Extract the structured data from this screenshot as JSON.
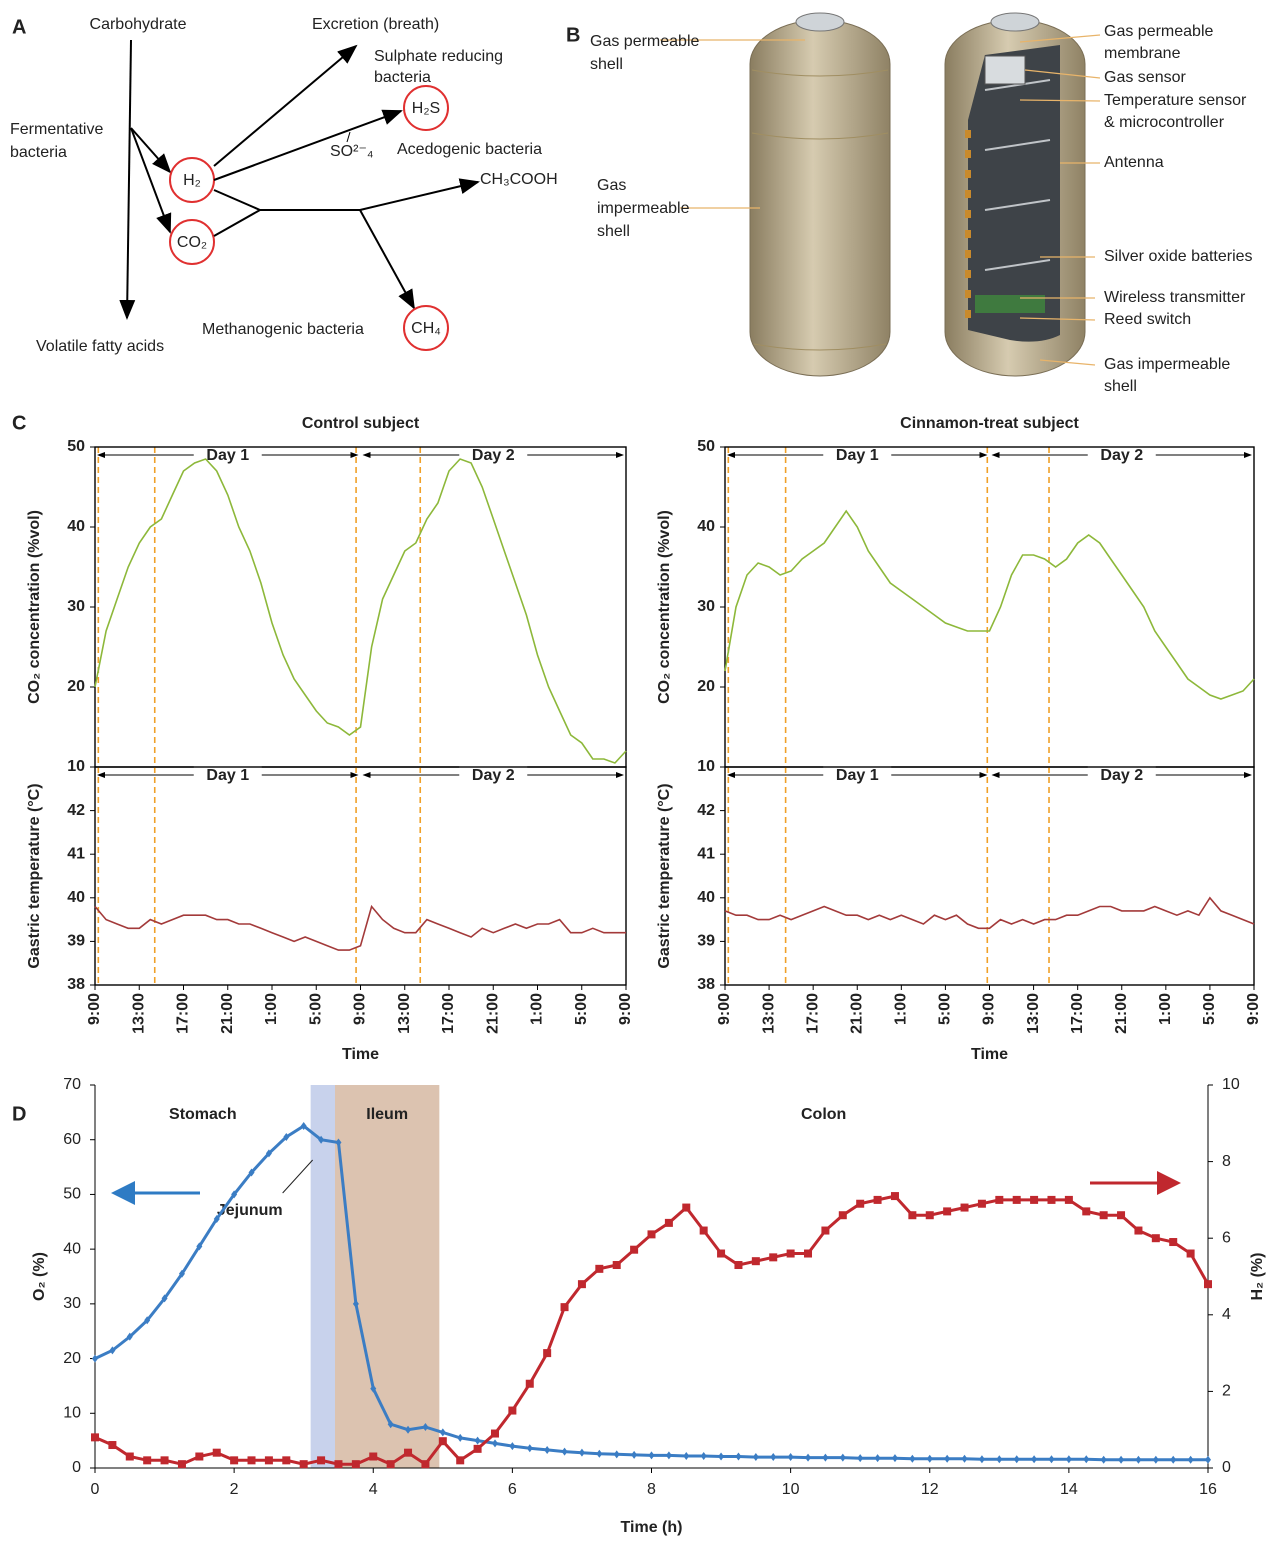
{
  "diagram": {
    "label": "A",
    "carbohydrate": "Carbohydrate",
    "excretion": "Excretion (breath)",
    "sulphate": {
      "lines": [
        "Sulphate reducing",
        "bacteria"
      ]
    },
    "fermentative": {
      "lines": [
        "Fermentative",
        "bacteria"
      ]
    },
    "h2": "H₂",
    "co2": "CO₂",
    "h2s": "H₂S",
    "so4": "SO²⁻₄",
    "acedogenic": "Acedogenic bacteria",
    "acetic": "CH₃COOH",
    "methanogenic": "Methanogenic bacteria",
    "ch4": "CH₄",
    "vfa": "Volatile fatty acids"
  },
  "capsule": {
    "label": "B",
    "left": [
      {
        "lines": [
          "Gas permeable",
          "shell"
        ]
      },
      {
        "lines": [
          "Gas",
          "impermeable",
          "shell"
        ]
      }
    ],
    "right": [
      {
        "lines": [
          "Gas permeable",
          "membrane"
        ]
      },
      {
        "lines": [
          "Gas sensor"
        ]
      },
      {
        "lines": [
          "Temperature sensor",
          "& microcontroller"
        ]
      },
      {
        "lines": [
          "Antenna"
        ]
      },
      {
        "lines": [
          "Silver oxide batteries"
        ]
      },
      {
        "lines": [
          "Wireless transmitter"
        ]
      },
      {
        "lines": [
          "Reed switch"
        ]
      },
      {
        "lines": [
          "Gas impermeable",
          "shell"
        ]
      }
    ]
  },
  "panel_c_label": "C",
  "panel_d_label": "D",
  "chart_data": [
    {
      "type": "line",
      "title": "Control subject",
      "ylabel": "CO₂ concentration (%vol)",
      "xlim": [
        0,
        48
      ],
      "ylim": [
        10,
        50
      ],
      "yticks": [
        10,
        20,
        30,
        40,
        50
      ],
      "vlines": [
        0.3,
        5.4,
        23.6,
        29.4
      ],
      "vline_color": "#f0a028",
      "periods": [
        {
          "label": "Day 1",
          "start": 0,
          "end": 24
        },
        {
          "label": "Day 2",
          "start": 24,
          "end": 48
        }
      ],
      "x": [
        0,
        1,
        2,
        3,
        4,
        5,
        6,
        7,
        8,
        9,
        10,
        11,
        12,
        13,
        14,
        15,
        16,
        17,
        18,
        19,
        20,
        21,
        22,
        23,
        24,
        25,
        26,
        27,
        28,
        29,
        30,
        31,
        32,
        33,
        34,
        35,
        36,
        37,
        38,
        39,
        40,
        41,
        42,
        43,
        44,
        45,
        46,
        47,
        48
      ],
      "series": [
        {
          "color": "#8db83a",
          "values": [
            20,
            27,
            31,
            35,
            38,
            40,
            41,
            44,
            47,
            48,
            48.5,
            47,
            44,
            40,
            37,
            33,
            28,
            24,
            21,
            19,
            17,
            15.5,
            15,
            14,
            15,
            25,
            31,
            34,
            37,
            38,
            41,
            43,
            47,
            48.5,
            48,
            45,
            41,
            37,
            33,
            29,
            24,
            20,
            17,
            14,
            13,
            11,
            11,
            10.5,
            12
          ]
        }
      ]
    },
    {
      "type": "line",
      "ylabel": "Gastric temperature (°C)",
      "xlabel": "Time",
      "xlim": [
        0,
        48
      ],
      "ylim": [
        38,
        43
      ],
      "yticks": [
        38,
        39,
        40,
        41,
        42
      ],
      "vlines": [
        0.3,
        5.4,
        23.6,
        29.4
      ],
      "vline_color": "#f0a028",
      "periods": [
        {
          "label": "Day 1",
          "start": 0,
          "end": 24
        },
        {
          "label": "Day 2",
          "start": 24,
          "end": 48
        }
      ],
      "xticks": [
        {
          "value": 0,
          "label": "9:00"
        },
        {
          "value": 4,
          "label": "13:00"
        },
        {
          "value": 8,
          "label": "17:00"
        },
        {
          "value": 12,
          "label": "21:00"
        },
        {
          "value": 16,
          "label": "1:00"
        },
        {
          "value": 20,
          "label": "5:00"
        },
        {
          "value": 24,
          "label": "9:00"
        },
        {
          "value": 28,
          "label": "13:00"
        },
        {
          "value": 32,
          "label": "17:00"
        },
        {
          "value": 36,
          "label": "21:00"
        },
        {
          "value": 40,
          "label": "1:00"
        },
        {
          "value": 44,
          "label": "5:00"
        },
        {
          "value": 48,
          "label": "9:00"
        }
      ],
      "x": [
        0,
        1,
        2,
        3,
        4,
        5,
        6,
        7,
        8,
        9,
        10,
        11,
        12,
        13,
        14,
        15,
        16,
        17,
        18,
        19,
        20,
        21,
        22,
        23,
        24,
        25,
        26,
        27,
        28,
        29,
        30,
        31,
        32,
        33,
        34,
        35,
        36,
        37,
        38,
        39,
        40,
        41,
        42,
        43,
        44,
        45,
        46,
        47,
        48
      ],
      "series": [
        {
          "color": "#a33a3a",
          "values": [
            39.8,
            39.5,
            39.4,
            39.3,
            39.3,
            39.5,
            39.4,
            39.5,
            39.6,
            39.6,
            39.6,
            39.5,
            39.5,
            39.4,
            39.4,
            39.3,
            39.2,
            39.1,
            39.0,
            39.1,
            39.0,
            38.9,
            38.8,
            38.8,
            38.9,
            39.8,
            39.5,
            39.3,
            39.2,
            39.2,
            39.5,
            39.4,
            39.3,
            39.2,
            39.1,
            39.3,
            39.2,
            39.3,
            39.4,
            39.3,
            39.4,
            39.4,
            39.5,
            39.2,
            39.2,
            39.3,
            39.2,
            39.2,
            39.2
          ]
        }
      ]
    },
    {
      "type": "line",
      "title": "Cinnamon-treat subject",
      "ylabel": "CO₂ concentration (%vol)",
      "xlim": [
        0,
        48
      ],
      "ylim": [
        10,
        50
      ],
      "yticks": [
        10,
        20,
        30,
        40,
        50
      ],
      "vlines": [
        0.3,
        5.5,
        23.8,
        29.4
      ],
      "vline_color": "#f0a028",
      "periods": [
        {
          "label": "Day 1",
          "start": 0,
          "end": 24
        },
        {
          "label": "Day 2",
          "start": 24,
          "end": 48
        }
      ],
      "x": [
        0,
        1,
        2,
        3,
        4,
        5,
        6,
        7,
        8,
        9,
        10,
        11,
        12,
        13,
        14,
        15,
        16,
        17,
        18,
        19,
        20,
        21,
        22,
        23,
        24,
        25,
        26,
        27,
        28,
        29,
        30,
        31,
        32,
        33,
        34,
        35,
        36,
        37,
        38,
        39,
        40,
        41,
        42,
        43,
        44,
        45,
        46,
        47,
        48
      ],
      "series": [
        {
          "color": "#8db83a",
          "values": [
            22,
            30,
            34,
            35.5,
            35,
            34,
            34.5,
            36,
            37,
            38,
            40,
            42,
            40,
            37,
            35,
            33,
            32,
            31,
            30,
            29,
            28,
            27.5,
            27,
            27,
            27,
            30,
            34,
            36.5,
            36.5,
            36,
            35,
            36,
            38,
            39,
            38,
            36,
            34,
            32,
            30,
            27,
            25,
            23,
            21,
            20,
            19,
            18.5,
            19,
            19.5,
            21
          ]
        }
      ]
    },
    {
      "type": "line",
      "ylabel": "Gastric temperature (°C)",
      "xlabel": "Time",
      "xlim": [
        0,
        48
      ],
      "ylim": [
        38,
        43
      ],
      "yticks": [
        38,
        39,
        40,
        41,
        42
      ],
      "vlines": [
        0.3,
        5.5,
        23.8,
        29.4
      ],
      "vline_color": "#f0a028",
      "periods": [
        {
          "label": "Day 1",
          "start": 0,
          "end": 24
        },
        {
          "label": "Day 2",
          "start": 24,
          "end": 48
        }
      ],
      "xticks": [
        {
          "value": 0,
          "label": "9:00"
        },
        {
          "value": 4,
          "label": "13:00"
        },
        {
          "value": 8,
          "label": "17:00"
        },
        {
          "value": 12,
          "label": "21:00"
        },
        {
          "value": 16,
          "label": "1:00"
        },
        {
          "value": 20,
          "label": "5:00"
        },
        {
          "value": 24,
          "label": "9:00"
        },
        {
          "value": 28,
          "label": "13:00"
        },
        {
          "value": 32,
          "label": "17:00"
        },
        {
          "value": 36,
          "label": "21:00"
        },
        {
          "value": 40,
          "label": "1:00"
        },
        {
          "value": 44,
          "label": "5:00"
        },
        {
          "value": 48,
          "label": "9:00"
        }
      ],
      "x": [
        0,
        1,
        2,
        3,
        4,
        5,
        6,
        7,
        8,
        9,
        10,
        11,
        12,
        13,
        14,
        15,
        16,
        17,
        18,
        19,
        20,
        21,
        22,
        23,
        24,
        25,
        26,
        27,
        28,
        29,
        30,
        31,
        32,
        33,
        34,
        35,
        36,
        37,
        38,
        39,
        40,
        41,
        42,
        43,
        44,
        45,
        46,
        47,
        48
      ],
      "series": [
        {
          "color": "#a33a3a",
          "values": [
            39.7,
            39.6,
            39.6,
            39.5,
            39.5,
            39.6,
            39.5,
            39.6,
            39.7,
            39.8,
            39.7,
            39.6,
            39.6,
            39.5,
            39.6,
            39.5,
            39.6,
            39.5,
            39.4,
            39.6,
            39.5,
            39.6,
            39.4,
            39.3,
            39.3,
            39.5,
            39.4,
            39.5,
            39.4,
            39.5,
            39.5,
            39.6,
            39.6,
            39.7,
            39.8,
            39.8,
            39.7,
            39.7,
            39.7,
            39.8,
            39.7,
            39.6,
            39.7,
            39.6,
            40.0,
            39.7,
            39.6,
            39.5,
            39.4
          ]
        }
      ]
    },
    {
      "type": "line",
      "xlabel": "Time (h)",
      "ylabel": "O₂ (%)",
      "y2label": "H₂ (%)",
      "xlim": [
        0,
        16
      ],
      "xticks": [
        0,
        2,
        4,
        6,
        8,
        10,
        12,
        14,
        16
      ],
      "ylim": [
        0,
        70
      ],
      "yticks": [
        0,
        10,
        20,
        30,
        40,
        50,
        60,
        70
      ],
      "y2lim": [
        0,
        10
      ],
      "y2ticks": [
        0,
        2,
        4,
        6,
        8,
        10
      ],
      "regions": [
        {
          "label": "Stomach",
          "start": 0,
          "end": 3.1
        },
        {
          "label": "Jejunum",
          "start": 3.1,
          "end": 3.45,
          "color": "#c8d2ec"
        },
        {
          "label": "Ileum",
          "start": 3.45,
          "end": 4.95,
          "color": "#dcc3b0"
        },
        {
          "label": "Colon",
          "start": 4.95,
          "end": 16
        }
      ],
      "x": [
        0,
        0.25,
        0.5,
        0.75,
        1,
        1.25,
        1.5,
        1.75,
        2,
        2.25,
        2.5,
        2.75,
        3,
        3.25,
        3.5,
        3.75,
        4,
        4.25,
        4.5,
        4.75,
        5,
        5.25,
        5.5,
        5.75,
        6,
        6.25,
        6.5,
        6.75,
        7,
        7.25,
        7.5,
        7.75,
        8,
        8.25,
        8.5,
        8.75,
        9,
        9.25,
        9.5,
        9.75,
        10,
        10.25,
        10.5,
        10.75,
        11,
        11.25,
        11.5,
        11.75,
        12,
        12.25,
        12.5,
        12.75,
        13,
        13.25,
        13.5,
        13.75,
        14,
        14.25,
        14.5,
        14.75,
        15,
        15.25,
        15.5,
        15.75,
        16
      ],
      "series": [
        {
          "color": "#3b7dc4",
          "marker": "diamond",
          "values": [
            20,
            21.5,
            24,
            27,
            31,
            35.5,
            40.5,
            45.5,
            50,
            54,
            57.5,
            60.5,
            62.5,
            60,
            59.5,
            30,
            14.5,
            8,
            7,
            7.5,
            6.5,
            5.5,
            5,
            4.5,
            4,
            3.6,
            3.3,
            3,
            2.8,
            2.6,
            2.5,
            2.4,
            2.3,
            2.3,
            2.2,
            2.2,
            2.1,
            2.1,
            2.0,
            2.0,
            2.0,
            1.9,
            1.9,
            1.9,
            1.8,
            1.8,
            1.8,
            1.7,
            1.7,
            1.7,
            1.7,
            1.6,
            1.6,
            1.6,
            1.6,
            1.6,
            1.6,
            1.6,
            1.5,
            1.5,
            1.5,
            1.5,
            1.5,
            1.5,
            1.5
          ]
        },
        {
          "color": "#c0282e",
          "marker": "square",
          "axis": "y2",
          "values": [
            0.8,
            0.6,
            0.3,
            0.2,
            0.2,
            0.1,
            0.3,
            0.4,
            0.2,
            0.2,
            0.2,
            0.2,
            0.1,
            0.2,
            0.1,
            0.1,
            0.3,
            0.1,
            0.4,
            0.1,
            0.7,
            0.2,
            0.5,
            0.9,
            1.5,
            2.2,
            3.0,
            4.2,
            4.8,
            5.2,
            5.3,
            5.7,
            6.1,
            6.4,
            6.8,
            6.2,
            5.6,
            5.3,
            5.4,
            5.5,
            5.6,
            5.6,
            6.2,
            6.6,
            6.9,
            7.0,
            7.1,
            6.6,
            6.6,
            6.7,
            6.8,
            6.9,
            7.0,
            7.0,
            7.0,
            7.0,
            7.0,
            6.7,
            6.6,
            6.6,
            6.2,
            6.0,
            5.9,
            5.6,
            4.8
          ]
        }
      ]
    }
  ]
}
